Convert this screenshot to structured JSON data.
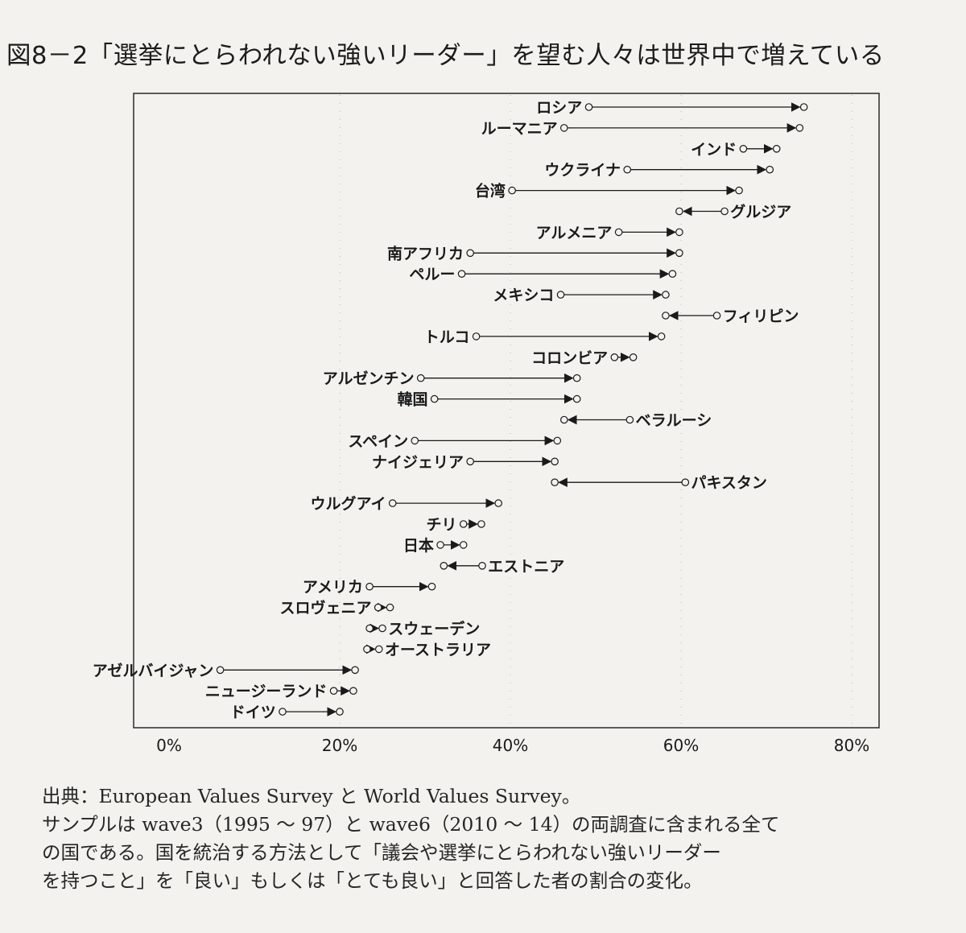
{
  "title": "図8－2「選挙にとらわれない強いリーダー」を望む人々は世界中で増えている",
  "notes": [
    "出典：European Values Survey と World Values Survey。",
    "サンプルは wave3（1995 ～ 97）と wave6（2010 ～ 14）の両調査に含まれる全て",
    "の国である。国を統治する方法として「議会や選挙にとらわれない強いリーダー",
    "を持つこと」を「良い」もしくは「とても良い」と回答した者の割合の変化。"
  ],
  "chart_data": {
    "type": "dumbbell",
    "title": "図8－2「選挙にとらわれない強いリーダー」を望む人々は世界中で増えている",
    "xlabel": "",
    "ylabel": "",
    "xlim": [
      -2,
      82
    ],
    "x_ticks": [
      0,
      20,
      40,
      60,
      80
    ],
    "x_tick_labels": [
      "0%",
      "20%",
      "40%",
      "60%",
      "80%"
    ],
    "grid": "dotted vertical gridlines at each tick",
    "series_note": "start = wave3 (1995–97), end = wave6 (2010–14); arrow points from start to end",
    "countries": [
      {
        "name": "ロシア",
        "start": 49.2,
        "end": 74.4,
        "label_side": "left"
      },
      {
        "name": "ルーマニア",
        "start": 46.3,
        "end": 73.9,
        "label_side": "left"
      },
      {
        "name": "インド",
        "start": 67.3,
        "end": 71.2,
        "label_side": "left"
      },
      {
        "name": "ウクライナ",
        "start": 53.7,
        "end": 70.4,
        "label_side": "left"
      },
      {
        "name": "台湾",
        "start": 40.2,
        "end": 66.8,
        "label_side": "left"
      },
      {
        "name": "グルジア",
        "start": 65.1,
        "end": 59.8,
        "label_side": "right"
      },
      {
        "name": "アルメニア",
        "start": 52.7,
        "end": 59.8,
        "label_side": "left"
      },
      {
        "name": "南アフリカ",
        "start": 35.3,
        "end": 59.8,
        "label_side": "left"
      },
      {
        "name": "ペルー",
        "start": 34.3,
        "end": 59.0,
        "label_side": "left"
      },
      {
        "name": "メキシコ",
        "start": 45.9,
        "end": 58.2,
        "label_side": "left"
      },
      {
        "name": "フィリピン",
        "start": 64.2,
        "end": 58.2,
        "label_side": "right"
      },
      {
        "name": "トルコ",
        "start": 36.0,
        "end": 57.7,
        "label_side": "left"
      },
      {
        "name": "コロンビア",
        "start": 52.2,
        "end": 54.4,
        "label_side": "left"
      },
      {
        "name": "アルゼンチン",
        "start": 29.5,
        "end": 47.8,
        "label_side": "left"
      },
      {
        "name": "韓国",
        "start": 31.1,
        "end": 47.8,
        "label_side": "left"
      },
      {
        "name": "ベラルーシ",
        "start": 54.0,
        "end": 46.3,
        "label_side": "right"
      },
      {
        "name": "スペイン",
        "start": 28.8,
        "end": 45.5,
        "label_side": "left"
      },
      {
        "name": "ナイジェリア",
        "start": 35.3,
        "end": 45.2,
        "label_side": "left"
      },
      {
        "name": "パキスタン",
        "start": 60.5,
        "end": 45.2,
        "label_side": "right"
      },
      {
        "name": "ウルグアイ",
        "start": 26.2,
        "end": 38.6,
        "label_side": "left"
      },
      {
        "name": "チリ",
        "start": 34.5,
        "end": 36.6,
        "label_side": "left"
      },
      {
        "name": "日本",
        "start": 31.8,
        "end": 34.5,
        "label_side": "left"
      },
      {
        "name": "エストニア",
        "start": 36.7,
        "end": 32.2,
        "label_side": "right"
      },
      {
        "name": "アメリカ",
        "start": 23.5,
        "end": 30.8,
        "label_side": "left"
      },
      {
        "name": "スロヴェニア",
        "start": 24.5,
        "end": 25.9,
        "label_side": "left"
      },
      {
        "name": "スウェーデン",
        "start": 23.5,
        "end": 25.0,
        "label_side": "right"
      },
      {
        "name": "オーストラリア",
        "start": 23.2,
        "end": 24.6,
        "label_side": "right"
      },
      {
        "name": "アゼルバイジャン",
        "start": 6.0,
        "end": 21.8,
        "label_side": "left"
      },
      {
        "name": "ニュージーランド",
        "start": 19.3,
        "end": 21.6,
        "label_side": "left"
      },
      {
        "name": "ドイツ",
        "start": 13.3,
        "end": 20.0,
        "label_side": "left"
      }
    ]
  }
}
